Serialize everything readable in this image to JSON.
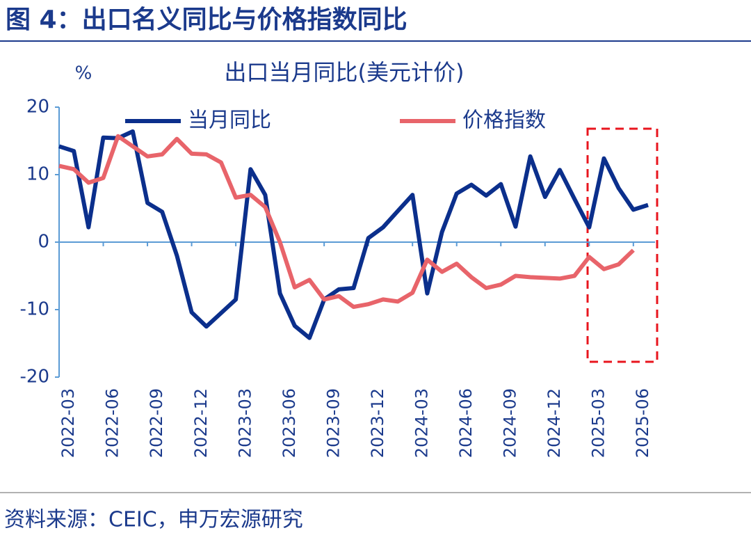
{
  "figure_title": "图 4：出口名义同比与价格指数同比",
  "source": "资料来源：CEIC，申万宏源研究",
  "chart_data": {
    "type": "line",
    "title": "出口当月同比(美元计价)",
    "y_unit_label": "%",
    "categories": [
      null,
      "2022-03",
      null,
      null,
      "2022-06",
      null,
      null,
      "2022-09",
      null,
      null,
      "2022-12",
      null,
      null,
      "2023-03",
      null,
      null,
      "2023-06",
      null,
      null,
      "2023-09",
      null,
      null,
      "2023-12",
      null,
      null,
      "2024-03",
      null,
      null,
      "2024-06",
      null,
      null,
      "2024-09",
      null,
      null,
      "2024-12",
      null,
      null,
      "2025-03",
      null,
      null,
      "2025-06"
    ],
    "series": [
      {
        "name": "当月同比",
        "color": "#0b2f8c",
        "values": [
          14.2,
          13.5,
          2.2,
          15.5,
          15.4,
          16.4,
          5.8,
          4.5,
          -2,
          -10.4,
          -12.5,
          -10.5,
          -8.5,
          10.8,
          7,
          -7.6,
          -12.4,
          -14.2,
          -8.5,
          -7,
          -6.8,
          0.6,
          2.2,
          4.6,
          7,
          -7.6,
          1.5,
          7.2,
          8.5,
          6.9,
          8.6,
          2.3,
          12.7,
          6.7,
          10.7,
          6.4,
          2.2,
          12.4,
          8,
          4.8,
          5.5
        ]
      },
      {
        "name": "价格指数",
        "color": "#e8646a",
        "values": [
          11.3,
          10.8,
          8.8,
          9.5,
          15.7,
          14.2,
          12.7,
          13,
          15.3,
          13.1,
          13,
          11.8,
          6.6,
          7,
          5.2,
          0,
          -6.7,
          -5.6,
          -8.5,
          -8,
          -9.6,
          -9.2,
          -8.5,
          -8.8,
          -7.5,
          -2.6,
          -4.4,
          -3.2,
          -5.2,
          -6.8,
          -6.3,
          -5,
          -5.2,
          -5.3,
          -5.4,
          -5,
          -2.2,
          -4,
          -3.3,
          -1.2,
          null
        ]
      }
    ],
    "ylim": [
      -20,
      20
    ],
    "yticks": [
      -20,
      -10,
      0,
      10,
      20
    ]
  }
}
